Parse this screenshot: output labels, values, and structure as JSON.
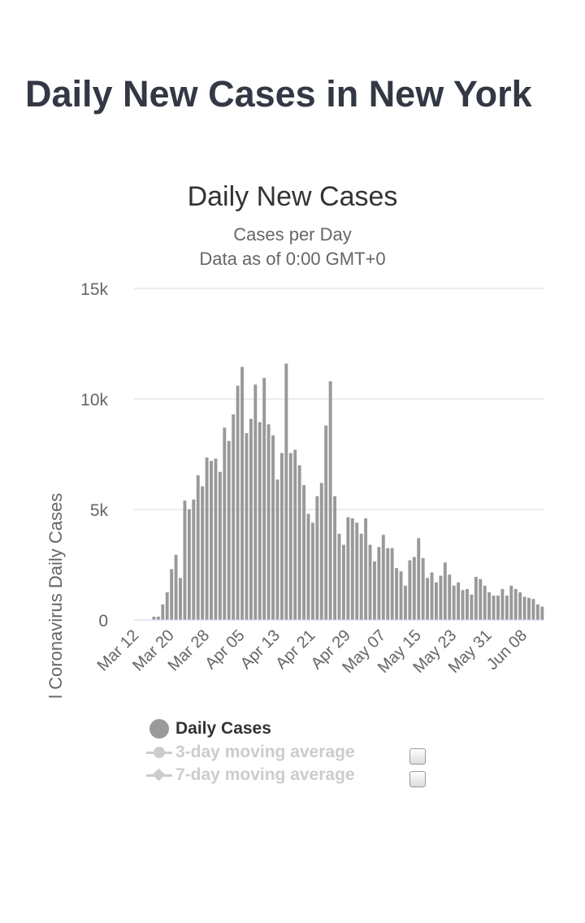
{
  "page": {
    "heading": "Daily New Cases in New York"
  },
  "chart_data": {
    "type": "bar",
    "title": "Daily New Cases",
    "subtitle_lines": [
      "Cases per Day",
      "Data as of 0:00 GMT+0"
    ],
    "xlabel": "",
    "ylabel": "Novel Coronavirus Daily Cases",
    "ylim": [
      0,
      15000
    ],
    "y_ticks": [
      0,
      5000,
      10000,
      15000
    ],
    "y_tick_labels": [
      "0",
      "5k",
      "10k",
      "15k"
    ],
    "x_tick_labels": [
      "Mar 12",
      "Mar 20",
      "Mar 28",
      "Apr 05",
      "Apr 13",
      "Apr 21",
      "Apr 29",
      "May 07",
      "May 15",
      "May 23",
      "May 31",
      "Jun 08"
    ],
    "x_tick_every": 8,
    "grid": true,
    "bar_color": "#999999",
    "categories": [
      "Mar 12",
      "Mar 13",
      "Mar 14",
      "Mar 15",
      "Mar 16",
      "Mar 17",
      "Mar 18",
      "Mar 19",
      "Mar 20",
      "Mar 21",
      "Mar 22",
      "Mar 23",
      "Mar 24",
      "Mar 25",
      "Mar 26",
      "Mar 27",
      "Mar 28",
      "Mar 29",
      "Mar 30",
      "Mar 31",
      "Apr 01",
      "Apr 02",
      "Apr 03",
      "Apr 04",
      "Apr 05",
      "Apr 06",
      "Apr 07",
      "Apr 08",
      "Apr 09",
      "Apr 10",
      "Apr 11",
      "Apr 12",
      "Apr 13",
      "Apr 14",
      "Apr 15",
      "Apr 16",
      "Apr 17",
      "Apr 18",
      "Apr 19",
      "Apr 20",
      "Apr 21",
      "Apr 22",
      "Apr 23",
      "Apr 24",
      "Apr 25",
      "Apr 26",
      "Apr 27",
      "Apr 28",
      "Apr 29",
      "Apr 30",
      "May 01",
      "May 02",
      "May 03",
      "May 04",
      "May 05",
      "May 06",
      "May 07",
      "May 08",
      "May 09",
      "May 10",
      "May 11",
      "May 12",
      "May 13",
      "May 14",
      "May 15",
      "May 16",
      "May 17",
      "May 18",
      "May 19",
      "May 20",
      "May 21",
      "May 22",
      "May 23",
      "May 24",
      "May 25",
      "May 26",
      "May 27",
      "May 28",
      "May 29",
      "May 30",
      "May 31",
      "Jun 01",
      "Jun 02",
      "Jun 03",
      "Jun 04",
      "Jun 05",
      "Jun 06",
      "Jun 07",
      "Jun 08",
      "Jun 09",
      "Jun 10",
      "Jun 11",
      "Jun 12"
    ],
    "series": [
      {
        "name": "Daily Cases",
        "values": [
          0,
          0,
          0,
          0,
          150,
          150,
          700,
          1250,
          2300,
          2950,
          1900,
          5400,
          5000,
          5450,
          6550,
          6050,
          7350,
          7200,
          7300,
          6700,
          8700,
          8100,
          9300,
          10600,
          11450,
          8450,
          9100,
          10650,
          8950,
          10950,
          8850,
          8350,
          6350,
          7550,
          11600,
          7550,
          7700,
          7000,
          6100,
          4800,
          4400,
          5600,
          6200,
          8800,
          10800,
          5600,
          3900,
          3400,
          4650,
          4600,
          4400,
          3900,
          4600,
          3400,
          2650,
          3300,
          3850,
          3250,
          3250,
          2350,
          2200,
          1550,
          2700,
          2850,
          3700,
          2800,
          1900,
          2150,
          1700,
          2000,
          2600,
          2050,
          1550,
          1700,
          1350,
          1400,
          1150,
          1950,
          1850,
          1550,
          1250,
          1100,
          1100,
          1400,
          1100,
          1550,
          1400,
          1250,
          1050,
          1000,
          950,
          700,
          600
        ]
      }
    ],
    "legend_position": "bottom"
  },
  "legend": {
    "items": [
      {
        "label": "Daily Cases",
        "color": "#999999",
        "marker": "circle",
        "active": true
      },
      {
        "label": "3-day moving average",
        "color": "#cccccc",
        "marker": "line-circle",
        "active": false
      },
      {
        "label": "7-day moving average",
        "color": "#cccccc",
        "marker": "line-diamond",
        "active": false
      }
    ]
  }
}
